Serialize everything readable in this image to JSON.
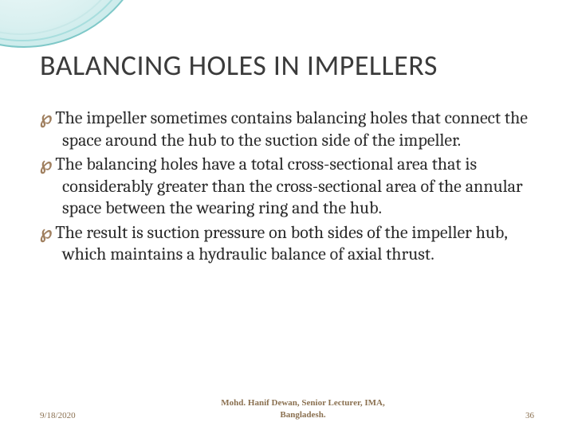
{
  "slide": {
    "title": "BALANCING HOLES IN IMPELLERS",
    "bullets": [
      "The impeller sometimes contains balancing holes that connect the space around the hub to the suction  side  of  the  impeller.",
      "The  balancing  holes  have  a  total  cross-sectional  area  that  is considerably greater than the cross-sectional area of the annular space between the wearing ring and the hub.",
      "The result is suction pressure on both sides of the impeller hub, which maintains a hydraulic balance of axial thrust."
    ],
    "bullet_glyph": "℘"
  },
  "footer": {
    "date": "9/18/2020",
    "center_line1": "Mohd. Hanif Dewan, Senior Lecturer, IMA,",
    "center_line2": "Bangladesh.",
    "page": "36"
  },
  "style": {
    "title_color": "#3b3b3b",
    "body_color": "#2b2b2b",
    "accent_color": "#a08060",
    "footer_color": "#8a7050",
    "decoration_colors": [
      "#7ec8c8",
      "#a8dede",
      "#c8e8e8"
    ],
    "background": "#ffffff",
    "title_fontsize": 36,
    "body_fontsize": 22,
    "footer_fontsize": 11
  }
}
